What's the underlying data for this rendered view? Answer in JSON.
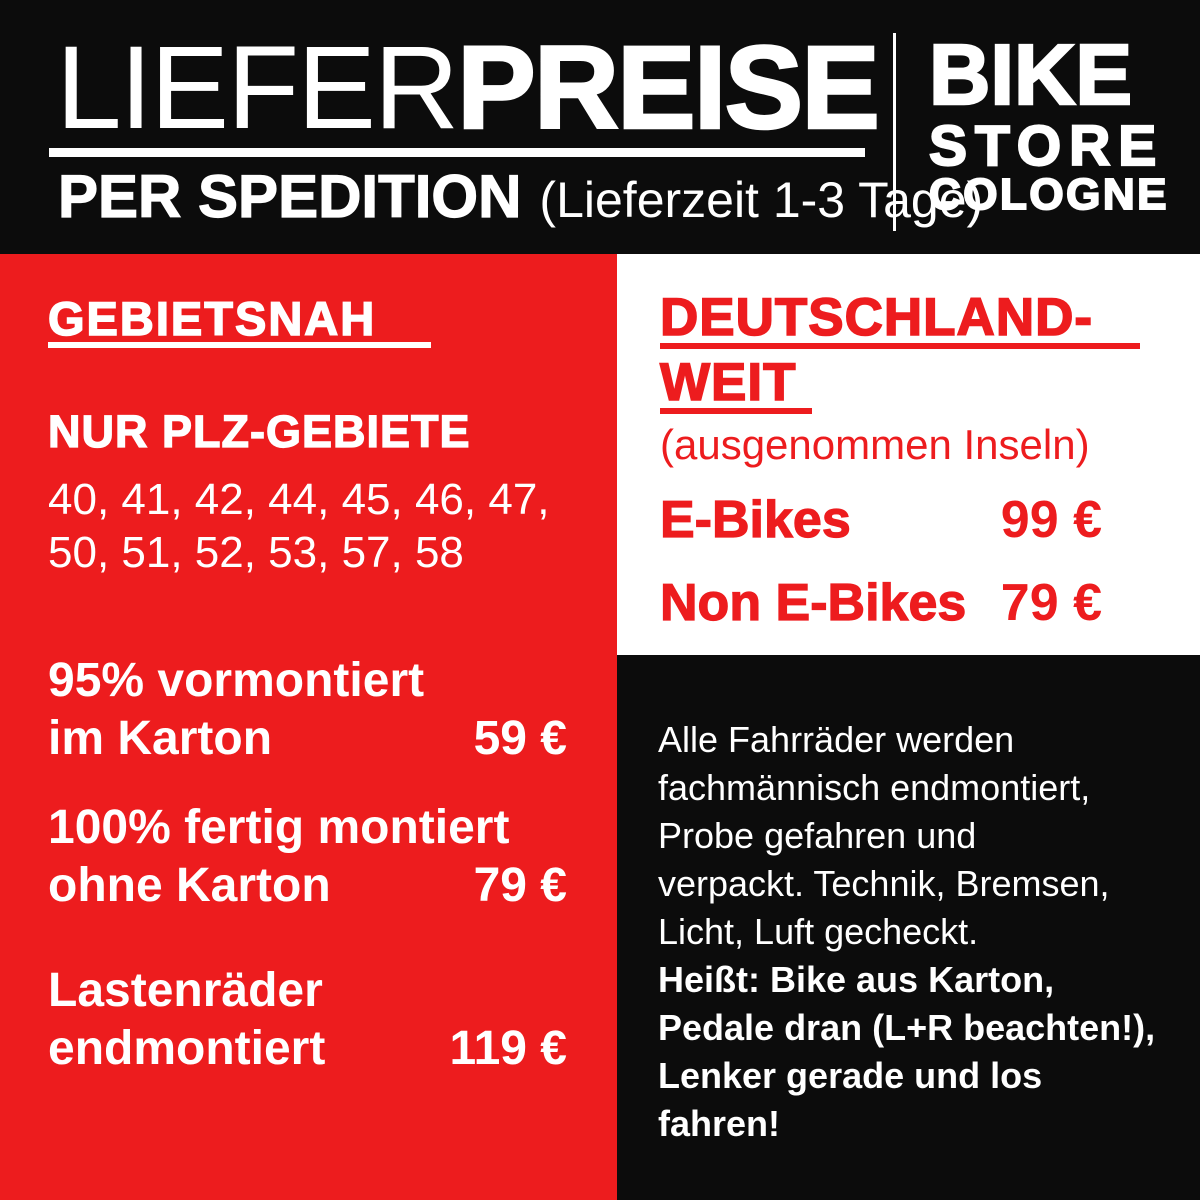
{
  "colors": {
    "red": "#ed1c1e",
    "black": "#0c0c0c",
    "white": "#ffffff"
  },
  "header": {
    "title_light": "LIEFER",
    "title_bold": "PREISE",
    "subtitle": "PER SPEDITION",
    "subtitle_note": "(Lieferzeit 1-3 Tage)",
    "logo": {
      "line1": "BIKE",
      "line2": "STORE",
      "line3": "COLOGNE"
    }
  },
  "regional": {
    "heading": "GEBIETSNAH",
    "subheading": "NUR PLZ-GEBIETE",
    "plz_line1": "40, 41, 42, 44, 45, 46, 47,",
    "plz_line2": "50, 51, 52, 53, 57, 58",
    "items": [
      {
        "line1": "95% vormontiert",
        "line2": "im Karton",
        "price": "59 €"
      },
      {
        "line1": "100% fertig montiert",
        "line2": "ohne Karton",
        "price": "79 €"
      },
      {
        "line1": "Lastenräder",
        "line2": "endmontiert",
        "price": "119 €"
      }
    ]
  },
  "nationwide": {
    "heading_line1": "DEUTSCHLAND-",
    "heading_line2": "WEIT",
    "note": "(ausgenommen Inseln)",
    "items": [
      {
        "label": "E-Bikes",
        "price": "99 €"
      },
      {
        "label": "Non E-Bikes",
        "price": "79 €"
      }
    ]
  },
  "info": {
    "line1": "Alle Fahrräder werden",
    "line2": "fachmännisch endmontiert,",
    "line3": "Probe gefahren und",
    "line4": "verpackt. Technik, Bremsen,",
    "line5": "Licht, Luft gecheckt.",
    "line6": "Heißt: Bike aus Karton,",
    "line7": "Pedale dran (L+R beachten!),",
    "line8": "Lenker gerade und los",
    "line9": "fahren!"
  }
}
